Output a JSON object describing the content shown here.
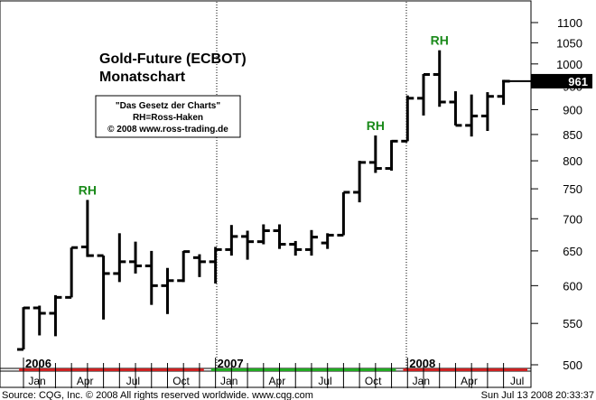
{
  "chart_data": {
    "type": "ohlc",
    "title": "Gold-Future (ECBOT)",
    "subtitle": "Monatschart",
    "info_box": [
      "\"Das Gesetz der Charts\"",
      "RH=Ross-Haken",
      "© 2008 www.ross-trading.de"
    ],
    "y_scale": "log",
    "ylim": [
      490,
      1130
    ],
    "y_ticks": [
      500,
      550,
      600,
      650,
      700,
      750,
      800,
      850,
      900,
      950,
      1000,
      1050,
      1100
    ],
    "last_value_label": "961",
    "last_value": 961,
    "year_labels": [
      "2006",
      "2007",
      "2008"
    ],
    "month_labels": [
      "Jan",
      "Apr",
      "Jul",
      "Oct",
      "Jan",
      "Apr",
      "Jul",
      "Oct",
      "Jan",
      "Apr",
      "Jul"
    ],
    "bars": [
      {
        "date": "2006-01",
        "open": 518,
        "high": 571,
        "low": 518,
        "close": 570
      },
      {
        "date": "2006-02",
        "open": 570,
        "high": 573,
        "low": 535,
        "close": 563
      },
      {
        "date": "2006-03",
        "open": 563,
        "high": 587,
        "low": 534,
        "close": 584
      },
      {
        "date": "2006-04",
        "open": 584,
        "high": 655,
        "low": 584,
        "close": 655
      },
      {
        "date": "2006-05",
        "open": 656,
        "high": 731,
        "low": 641,
        "close": 643
      },
      {
        "date": "2006-06",
        "open": 643,
        "high": 643,
        "low": 555,
        "close": 617
      },
      {
        "date": "2006-07",
        "open": 617,
        "high": 677,
        "low": 605,
        "close": 634
      },
      {
        "date": "2006-08",
        "open": 634,
        "high": 664,
        "low": 617,
        "close": 628
      },
      {
        "date": "2006-09",
        "open": 628,
        "high": 650,
        "low": 574,
        "close": 600
      },
      {
        "date": "2006-10",
        "open": 600,
        "high": 625,
        "low": 562,
        "close": 607
      },
      {
        "date": "2006-11",
        "open": 607,
        "high": 650,
        "low": 605,
        "close": 649
      },
      {
        "date": "2006-12",
        "open": 640,
        "high": 645,
        "low": 612,
        "close": 634
      },
      {
        "date": "2007-01",
        "open": 634,
        "high": 656,
        "low": 603,
        "close": 652
      },
      {
        "date": "2007-02",
        "open": 652,
        "high": 690,
        "low": 643,
        "close": 672
      },
      {
        "date": "2007-03",
        "open": 672,
        "high": 681,
        "low": 637,
        "close": 664
      },
      {
        "date": "2007-04",
        "open": 664,
        "high": 691,
        "low": 660,
        "close": 681
      },
      {
        "date": "2007-05",
        "open": 681,
        "high": 691,
        "low": 653,
        "close": 660
      },
      {
        "date": "2007-06",
        "open": 660,
        "high": 665,
        "low": 643,
        "close": 652
      },
      {
        "date": "2007-07",
        "open": 652,
        "high": 682,
        "low": 643,
        "close": 671
      },
      {
        "date": "2007-08",
        "open": 662,
        "high": 677,
        "low": 653,
        "close": 674
      },
      {
        "date": "2007-09",
        "open": 674,
        "high": 744,
        "low": 674,
        "close": 744
      },
      {
        "date": "2007-10",
        "open": 744,
        "high": 800,
        "low": 727,
        "close": 797
      },
      {
        "date": "2007-11",
        "open": 797,
        "high": 848,
        "low": 778,
        "close": 786
      },
      {
        "date": "2007-12",
        "open": 786,
        "high": 839,
        "low": 782,
        "close": 837
      },
      {
        "date": "2008-01",
        "open": 837,
        "high": 930,
        "low": 837,
        "close": 924
      },
      {
        "date": "2008-02",
        "open": 924,
        "high": 977,
        "low": 888,
        "close": 976
      },
      {
        "date": "2008-03",
        "open": 976,
        "high": 1032,
        "low": 906,
        "close": 916
      },
      {
        "date": "2008-04",
        "open": 916,
        "high": 939,
        "low": 868,
        "close": 868
      },
      {
        "date": "2008-05",
        "open": 868,
        "high": 932,
        "low": 846,
        "close": 887
      },
      {
        "date": "2008-06",
        "open": 887,
        "high": 937,
        "low": 857,
        "close": 928
      },
      {
        "date": "2008-07",
        "open": 928,
        "high": 964,
        "low": 910,
        "close": 961
      }
    ],
    "annotations": [
      {
        "text": "RH",
        "date": "2006-05",
        "value": 731
      },
      {
        "text": "RH",
        "date": "2007-11",
        "value": 848
      },
      {
        "text": "RH",
        "date": "2008-03",
        "value": 1032
      }
    ],
    "grid": "vertical dotted at year boundaries",
    "colors": {
      "bars": "#000000",
      "annotation": "#1a8a1a",
      "last_value_bg": "#000000",
      "month_strip_red": "#cc2222",
      "month_strip_green": "#22aa22"
    }
  },
  "footer": {
    "left": "Source: CQG, Inc. © 2008 All rights reserved worldwide. www.cqg.com",
    "right": "Sun Jul 13 2008 20:33:37"
  }
}
